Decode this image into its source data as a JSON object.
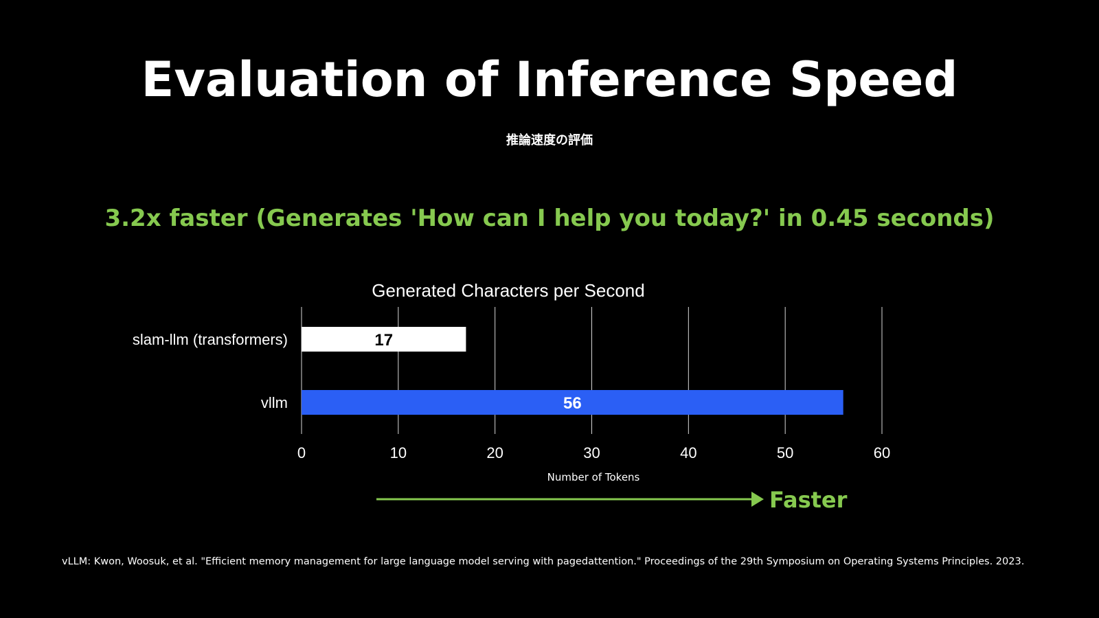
{
  "slide": {
    "title": "Evaluation of Inference Speed",
    "subtitle": "推論速度の評価",
    "headline": "3.2x faster (Generates 'How can I help you today?' in 0.45 seconds)",
    "faster_label": "Faster",
    "citation": "vLLM: Kwon, Woosuk, et al. \"Efficient memory management for large language model serving with pagedattention.\" Proceedings of the 29th Symposium on Operating Systems Principles. 2023."
  },
  "colors": {
    "background": "#000000",
    "accent_green": "#86c94f",
    "bar_white": "#ffffff",
    "bar_blue": "#2b5ff5",
    "grid": "#ffffff"
  },
  "chart_data": {
    "type": "bar",
    "orientation": "horizontal",
    "title": "Generated Characters per Second",
    "xlabel": "Number of Tokens",
    "ylabel": "",
    "categories": [
      "slam-llm (transformers)",
      "vllm"
    ],
    "values": [
      17,
      56
    ],
    "bar_colors": [
      "#ffffff",
      "#2b5ff5"
    ],
    "data_labels": [
      "17",
      "56"
    ],
    "xlim": [
      0,
      60
    ],
    "xticks": [
      0,
      10,
      20,
      30,
      40,
      50,
      60
    ],
    "grid": true,
    "legend": "none"
  }
}
